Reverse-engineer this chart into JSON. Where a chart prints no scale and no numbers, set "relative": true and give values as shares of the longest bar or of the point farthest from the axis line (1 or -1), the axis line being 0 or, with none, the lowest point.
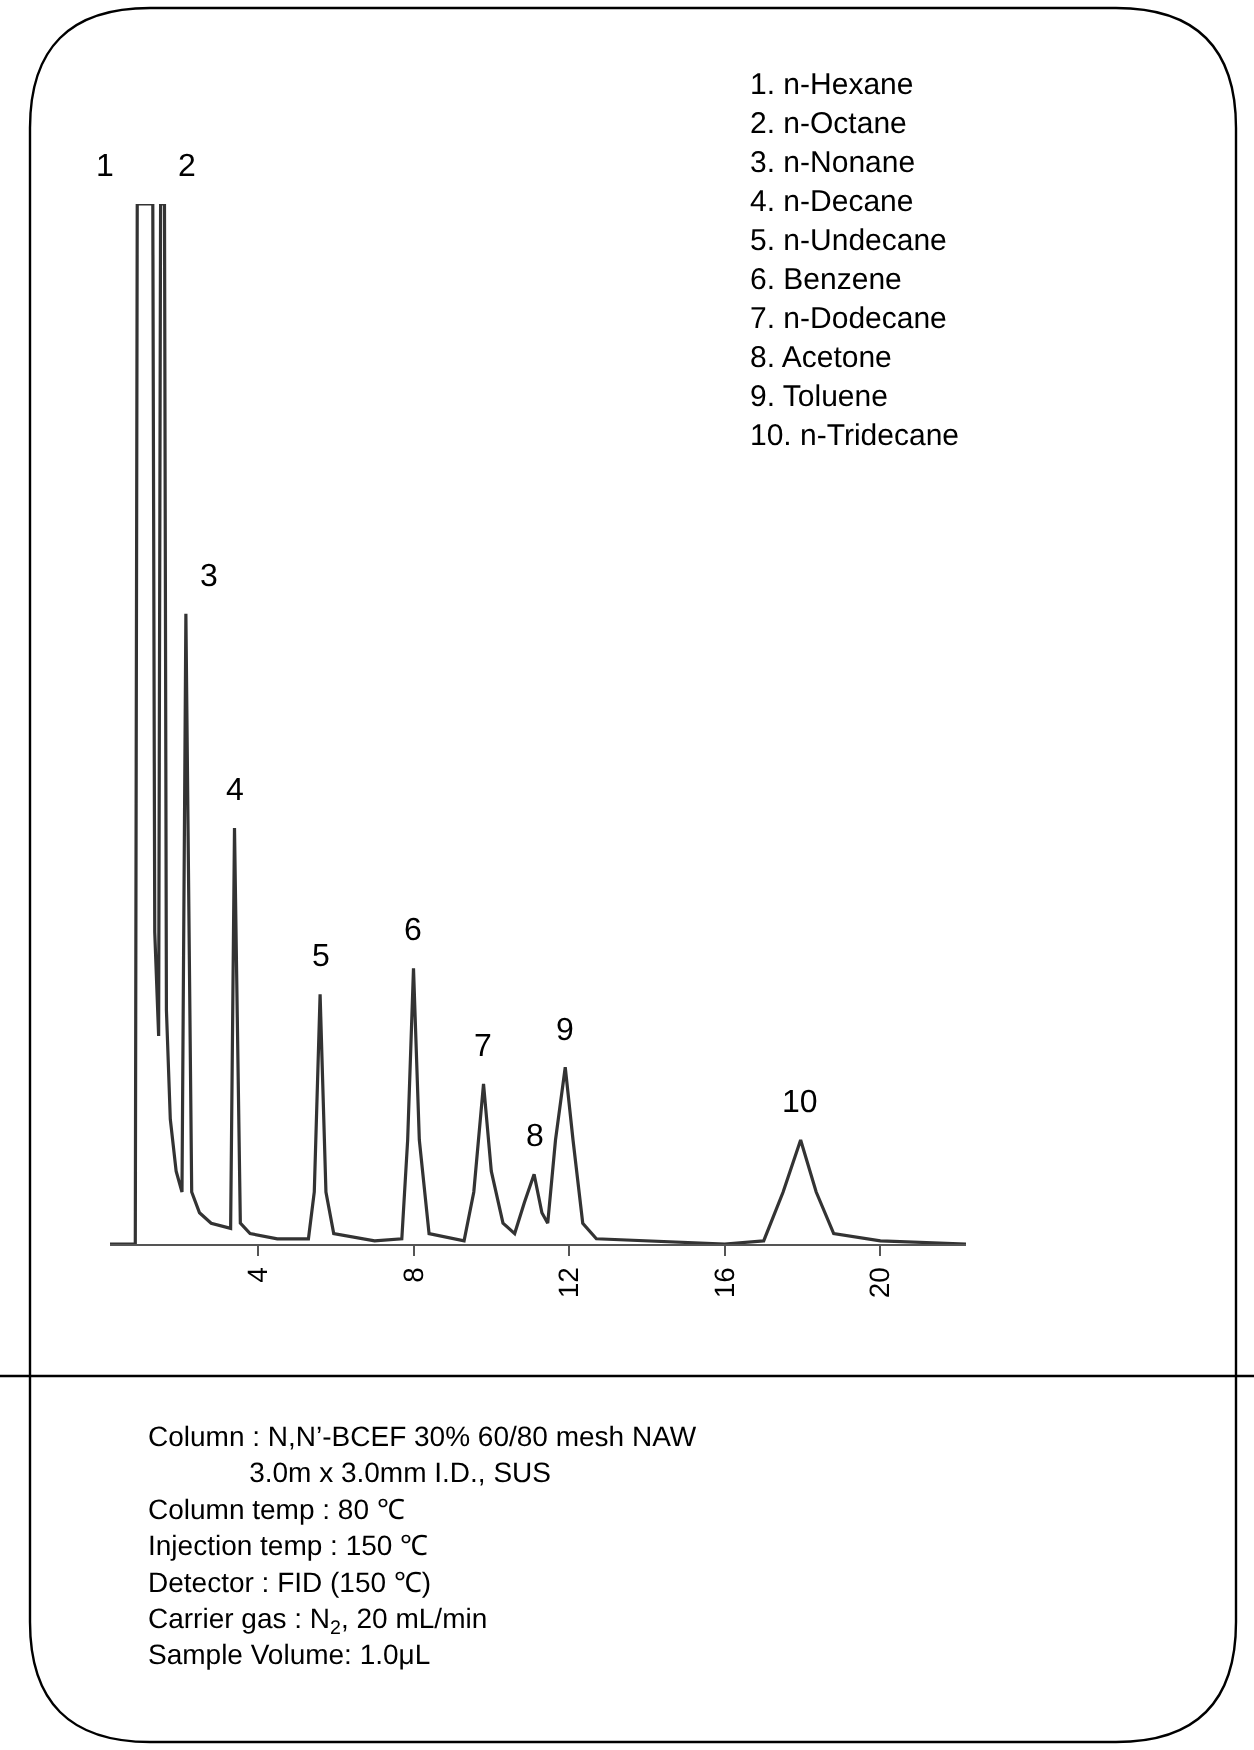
{
  "chart_data": {
    "type": "line",
    "relative": true,
    "color": "#333333",
    "x": [
      0.2,
      0.85,
      0.9,
      1.3,
      1.35,
      1.45,
      1.5,
      1.6,
      1.65,
      1.75,
      1.9,
      2.05,
      2.15,
      2.3,
      2.5,
      2.8,
      3.3,
      3.4,
      3.55,
      3.8,
      4.5,
      5.3,
      5.45,
      5.6,
      5.75,
      5.95,
      7.0,
      7.7,
      7.85,
      8.0,
      8.15,
      8.4,
      9.3,
      9.55,
      9.8,
      10.0,
      10.3,
      10.6,
      10.85,
      11.1,
      11.3,
      11.45,
      11.65,
      11.9,
      12.1,
      12.35,
      12.7,
      16.0,
      17.0,
      17.5,
      17.95,
      18.35,
      18.8,
      20.0,
      22.2
    ],
    "values": [
      0,
      0,
      1,
      1,
      0.3,
      0.2,
      1,
      1,
      0.225,
      0.12,
      0.07,
      0.05,
      0.606,
      0.05,
      0.03,
      0.02,
      0.015,
      0.4,
      0.02,
      0.01,
      0.005,
      0.005,
      0.05,
      0.24,
      0.05,
      0.01,
      0.003,
      0.005,
      0.1,
      0.265,
      0.1,
      0.01,
      0.003,
      0.05,
      0.154,
      0.07,
      0.02,
      0.01,
      0.04,
      0.067,
      0.03,
      0.02,
      0.1,
      0.17,
      0.1,
      0.02,
      0.005,
      0,
      0.003,
      0.05,
      0.1,
      0.05,
      0.01,
      0.003,
      0
    ],
    "xlim": [
      0.2,
      22.2
    ],
    "xticks": [
      4,
      8,
      12,
      16,
      20
    ],
    "marker": "none",
    "line_style": "solid",
    "annotations": [
      {
        "text": "1",
        "x": 1.1,
        "y": 1
      },
      {
        "text": "2",
        "x": 1.55,
        "y": 1
      },
      {
        "text": "3",
        "x": 2.15,
        "y": 0.606
      },
      {
        "text": "4",
        "x": 3.4,
        "y": 0.4
      },
      {
        "text": "5",
        "x": 5.6,
        "y": 0.24
      },
      {
        "text": "6",
        "x": 8.0,
        "y": 0.265
      },
      {
        "text": "7",
        "x": 9.8,
        "y": 0.154
      },
      {
        "text": "8",
        "x": 11.1,
        "y": 0.067
      },
      {
        "text": "9",
        "x": 11.9,
        "y": 0.17
      },
      {
        "text": "10",
        "x": 17.95,
        "y": 0.1
      },
      "1. n-Hexane\n2. n-Octane\n3. n-Nonane\n4. n-Decane\n5. n-Undecane\n6. Benzene\n7. n-Dodecane\n8. Acetone\n9. Toluene\n10. n-Tridecane",
      "Column : N,N’-BCEF 30% 60/80 mesh NAW\n             3.0m x 3.0mm I.D., SUS\nColumn temp : 80 ℃\nInjection temp : 150 ℃\nDetector : FID (150 ℃)\nCarrier gas : N$_{2}$, 20 mL/min\nSample Volume: 1.0μL"
    ]
  }
}
